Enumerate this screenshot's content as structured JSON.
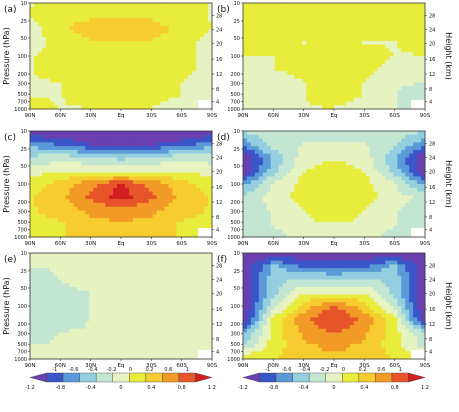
{
  "figure": {
    "y_left_label": "Pressure (hPa)",
    "y_right_label": "Height (km)",
    "x_ticks": [
      "90N",
      "60N",
      "30N",
      "Eq",
      "30S",
      "60S",
      "90S"
    ],
    "p_ticks": [
      "10",
      "25",
      "50",
      "100",
      "200",
      "300",
      "500",
      "700",
      "1000"
    ],
    "h_ticks": [
      "4",
      "8",
      "12",
      "16",
      "20",
      "24",
      "28"
    ]
  },
  "panels": [
    {
      "label": "(a)"
    },
    {
      "label": "(b)"
    },
    {
      "label": "(c)"
    },
    {
      "label": "(d)"
    },
    {
      "label": "(e)"
    },
    {
      "label": "(f)"
    }
  ],
  "colorbars": [
    {
      "ticks": [
        "-1",
        "-0.6",
        "-0.4",
        "-0.2",
        "0",
        "0.2",
        "0.6",
        "1"
      ],
      "ticks2": [
        "-1.2",
        "-0.8",
        "-0.4",
        "0",
        "0.4",
        "0.8",
        "1.2"
      ]
    },
    {
      "ticks": [
        "-1",
        "-0.6",
        "-0.4",
        "-0.2",
        "0",
        "0.2",
        "0.6",
        "1"
      ],
      "ticks2": [
        "-1.2",
        "-0.8",
        "-0.4",
        "0",
        "0.4",
        "0.8",
        "1.2"
      ]
    }
  ],
  "colors": [
    "#6a3fb0",
    "#3a55c8",
    "#5a9ad8",
    "#94cfe0",
    "#c2e6d2",
    "#e6f2c0",
    "#e8ec3a",
    "#f6cc2e",
    "#f29a26",
    "#e8542a",
    "#d21e1e"
  ],
  "chart_data": [
    {
      "type": "heatmap",
      "panel": "(a)",
      "x": [
        "90N",
        "60N",
        "30N",
        "Eq",
        "30S",
        "60S",
        "90S"
      ],
      "y": [
        "10",
        "25",
        "50",
        "100",
        "200",
        "300",
        "500",
        "700",
        "1000"
      ],
      "z": [
        [
          0.1,
          0.2,
          0.2,
          0.2,
          0.2,
          0.2,
          0.1
        ],
        [
          0.1,
          0.3,
          0.3,
          0.3,
          0.3,
          0.2,
          0.1
        ],
        [
          0.0,
          0.3,
          0.4,
          0.4,
          0.4,
          0.3,
          0.1
        ],
        [
          0.0,
          0.2,
          0.3,
          0.3,
          0.3,
          0.2,
          0.0
        ],
        [
          0.1,
          0.2,
          0.3,
          0.3,
          0.3,
          0.2,
          0.0
        ],
        [
          0.1,
          0.2,
          0.3,
          0.3,
          0.3,
          0.2,
          0.0
        ],
        [
          0.1,
          0.1,
          0.2,
          0.2,
          0.2,
          0.1,
          0.0
        ],
        [
          0.1,
          0.1,
          0.2,
          0.2,
          0.2,
          0.1,
          -0.1
        ],
        [
          0.2,
          0.1,
          0.1,
          0.1,
          0.1,
          0.0,
          -0.1
        ]
      ],
      "clim": [
        -1.2,
        1.2
      ]
    },
    {
      "type": "heatmap",
      "panel": "(b)",
      "x": [
        "90N",
        "60N",
        "30N",
        "Eq",
        "30S",
        "60S",
        "90S"
      ],
      "y": [
        "10",
        "25",
        "50",
        "100",
        "200",
        "300",
        "500",
        "700",
        "1000"
      ],
      "z": [
        [
          0.3,
          0.3,
          0.3,
          0.3,
          0.3,
          0.3,
          0.3
        ],
        [
          0.3,
          0.3,
          0.3,
          0.3,
          0.3,
          0.3,
          0.3
        ],
        [
          0.3,
          0.3,
          0.2,
          0.2,
          0.2,
          0.3,
          0.3
        ],
        [
          0.2,
          0.2,
          0.1,
          0.2,
          0.1,
          0.1,
          0.2
        ],
        [
          0.1,
          0.1,
          0.2,
          0.3,
          0.2,
          0.1,
          0.1
        ],
        [
          0.0,
          0.1,
          0.2,
          0.3,
          0.2,
          0.0,
          0.0
        ],
        [
          -0.1,
          0.0,
          0.1,
          0.2,
          0.1,
          -0.1,
          -0.1
        ],
        [
          -0.1,
          0.0,
          0.1,
          0.2,
          0.1,
          -0.1,
          -0.2
        ],
        [
          -0.1,
          0.0,
          0.1,
          0.1,
          0.0,
          -0.1,
          -0.2
        ]
      ],
      "clim": [
        -1.2,
        1.2
      ]
    },
    {
      "type": "heatmap",
      "panel": "(c)",
      "x": [
        "90N",
        "60N",
        "30N",
        "Eq",
        "30S",
        "60S",
        "90S"
      ],
      "y": [
        "10",
        "25",
        "50",
        "100",
        "200",
        "300",
        "500",
        "700",
        "1000"
      ],
      "z": [
        [
          -1.2,
          -1.2,
          -1.2,
          -1.2,
          -1.2,
          -1.2,
          -1.2
        ],
        [
          -0.6,
          -0.8,
          -1.0,
          -1.0,
          -1.0,
          -0.9,
          -0.6
        ],
        [
          -0.3,
          -0.2,
          -0.3,
          -0.4,
          -0.3,
          -0.2,
          -0.2
        ],
        [
          0.0,
          0.1,
          0.1,
          0.0,
          0.1,
          0.1,
          0.0
        ],
        [
          0.2,
          0.4,
          0.7,
          1.0,
          0.7,
          0.4,
          0.2
        ],
        [
          0.3,
          0.5,
          0.8,
          1.1,
          0.8,
          0.5,
          0.3
        ],
        [
          0.3,
          0.4,
          0.6,
          0.7,
          0.6,
          0.4,
          0.3
        ],
        [
          0.3,
          0.3,
          0.5,
          0.5,
          0.5,
          0.3,
          0.3
        ],
        [
          0.3,
          0.3,
          0.4,
          0.4,
          0.4,
          0.3,
          0.2
        ]
      ],
      "clim": [
        -1.2,
        1.2
      ]
    },
    {
      "type": "heatmap",
      "panel": "(d)",
      "x": [
        "90N",
        "60N",
        "30N",
        "Eq",
        "30S",
        "60S",
        "90S"
      ],
      "y": [
        "10",
        "25",
        "50",
        "100",
        "200",
        "300",
        "500",
        "700",
        "1000"
      ],
      "z": [
        [
          -0.3,
          -0.2,
          -0.2,
          -0.2,
          -0.2,
          -0.2,
          -0.3
        ],
        [
          -0.7,
          -0.2,
          -0.1,
          -0.1,
          -0.1,
          -0.3,
          -0.7
        ],
        [
          -1.2,
          -0.5,
          0.0,
          0.1,
          0.0,
          -0.5,
          -1.2
        ],
        [
          -1.2,
          -0.4,
          0.1,
          0.2,
          0.1,
          -0.4,
          -1.2
        ],
        [
          -0.6,
          -0.1,
          0.2,
          0.3,
          0.2,
          -0.1,
          -0.6
        ],
        [
          -0.3,
          0.0,
          0.2,
          0.3,
          0.2,
          0.0,
          -0.2
        ],
        [
          -0.2,
          -0.1,
          0.1,
          0.2,
          0.1,
          -0.1,
          -0.2
        ],
        [
          -0.2,
          -0.1,
          0.1,
          0.1,
          0.1,
          -0.1,
          -0.2
        ],
        [
          -0.2,
          -0.2,
          0.0,
          0.1,
          0.0,
          -0.2,
          -0.2
        ]
      ],
      "clim": [
        -1.2,
        1.2
      ]
    },
    {
      "type": "heatmap",
      "panel": "(e)",
      "x": [
        "90N",
        "60N",
        "30N",
        "Eq",
        "30S",
        "60S",
        "90S"
      ],
      "y": [
        "10",
        "25",
        "50",
        "100",
        "200",
        "300",
        "500",
        "700",
        "1000"
      ],
      "z": [
        [
          -0.1,
          -0.1,
          0.1,
          0.1,
          0.1,
          0.0,
          0.0
        ],
        [
          -0.1,
          -0.1,
          0.1,
          0.0,
          0.0,
          0.0,
          -0.1
        ],
        [
          -0.2,
          -0.1,
          0.0,
          -0.1,
          -0.1,
          -0.1,
          -0.1
        ],
        [
          -0.2,
          -0.2,
          -0.1,
          -0.1,
          -0.1,
          -0.1,
          -0.1
        ],
        [
          -0.2,
          -0.2,
          -0.1,
          -0.1,
          -0.1,
          -0.1,
          -0.1
        ],
        [
          -0.2,
          -0.2,
          -0.1,
          -0.1,
          -0.1,
          -0.1,
          -0.1
        ],
        [
          -0.2,
          -0.1,
          -0.1,
          -0.1,
          -0.1,
          -0.1,
          -0.1
        ],
        [
          -0.1,
          -0.1,
          -0.1,
          -0.1,
          -0.1,
          -0.1,
          -0.1
        ],
        [
          -0.1,
          -0.1,
          -0.1,
          -0.1,
          -0.1,
          -0.1,
          -0.1
        ]
      ],
      "clim": [
        -1.2,
        1.2
      ]
    },
    {
      "type": "heatmap",
      "panel": "(f)",
      "x": [
        "90N",
        "60N",
        "30N",
        "Eq",
        "30S",
        "60S",
        "90S"
      ],
      "y": [
        "10",
        "25",
        "50",
        "100",
        "200",
        "300",
        "500",
        "700",
        "1000"
      ],
      "z": [
        [
          -1.2,
          -1.2,
          -1.2,
          -1.2,
          -1.2,
          -1.2,
          -1.2
        ],
        [
          -1.2,
          -0.5,
          -0.8,
          -0.9,
          -0.8,
          -0.5,
          -1.2
        ],
        [
          -1.2,
          -0.4,
          -0.3,
          -0.3,
          -0.3,
          -0.4,
          -1.2
        ],
        [
          -1.2,
          -0.4,
          0.1,
          0.1,
          0.1,
          -0.4,
          -1.2
        ],
        [
          -1.2,
          -0.2,
          0.4,
          0.8,
          0.4,
          -0.2,
          -1.2
        ],
        [
          -1.2,
          0.2,
          0.7,
          1.0,
          0.7,
          0.2,
          -1.2
        ],
        [
          -0.6,
          0.2,
          0.6,
          0.8,
          0.6,
          0.2,
          -0.3
        ],
        [
          -0.3,
          0.2,
          0.5,
          0.6,
          0.5,
          0.2,
          -0.2
        ],
        [
          0.3,
          0.3,
          0.5,
          0.5,
          0.5,
          0.3,
          0.2
        ]
      ],
      "clim": [
        -1.2,
        1.2
      ]
    }
  ]
}
